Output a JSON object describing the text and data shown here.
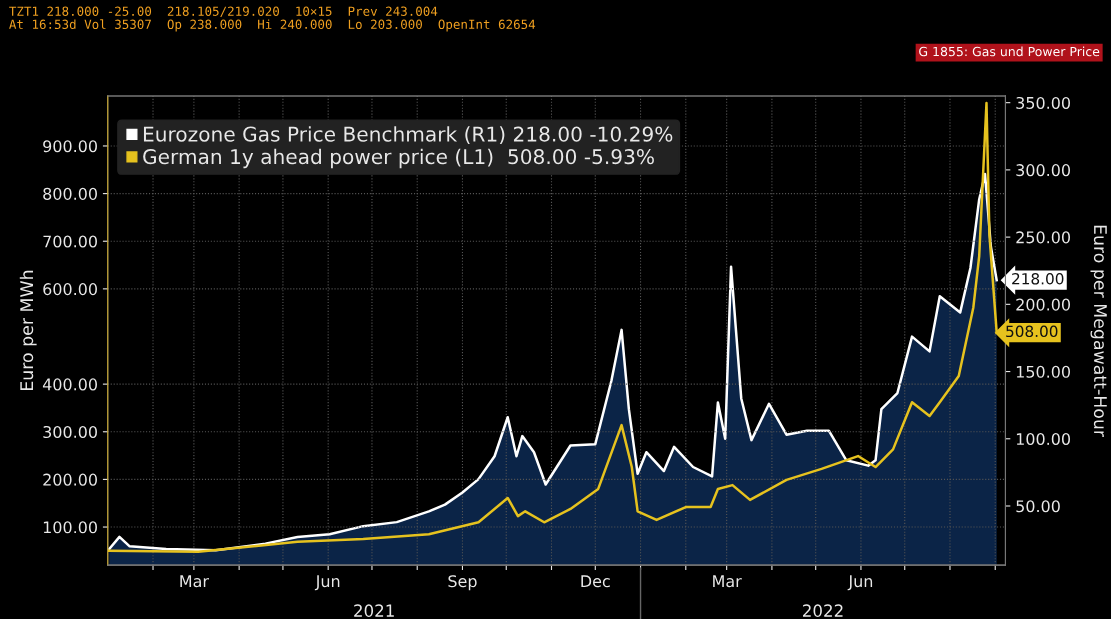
{
  "chart_data": {
    "type": "line",
    "title": "G 1855: Gas und Power Price",
    "subtitle": "TZT1 218.000 -25.00  218.105/219.020  10×15  Prev 243.004\nAt 16:53d Vol 35307  Op 238.000  Hi 240.000  Lo 203.000  OpenInt 62654",
    "ylabel": "Euro per MWh",
    "y2label": "Euro per Megawatt-Hour",
    "legend": "top left",
    "grid": true,
    "ylim": [
      20,
      1005
    ],
    "yticks": [
      {
        "value": 100,
        "label": "100.00"
      },
      {
        "value": 200,
        "label": "200.00"
      },
      {
        "value": 300,
        "label": "300.00"
      },
      {
        "value": 400,
        "label": "400.00"
      },
      {
        "value": 600,
        "label": "600.00"
      },
      {
        "value": 700,
        "label": "700.00"
      },
      {
        "value": 800,
        "label": "800.00"
      },
      {
        "value": 900,
        "label": "900.00"
      }
    ],
    "y2lim": [
      6,
      355
    ],
    "y2ticks": [
      {
        "value": 50,
        "label": "50.00"
      },
      {
        "value": 100,
        "label": "100.00"
      },
      {
        "value": 150,
        "label": "150.00"
      },
      {
        "value": 200,
        "label": "200.00"
      },
      {
        "value": 250,
        "label": "250.00"
      },
      {
        "value": 300,
        "label": "300.00"
      },
      {
        "value": 350,
        "label": "350.00"
      }
    ],
    "xlim": [
      "2021-01-01",
      "2022-09-08"
    ],
    "xticks": [
      {
        "value": "2021-02-01",
        "label": null
      },
      {
        "value": "2021-03-01",
        "label": "Mar"
      },
      {
        "value": "2021-04-01",
        "label": null
      },
      {
        "value": "2021-05-01",
        "label": null
      },
      {
        "value": "2021-06-01",
        "label": "Jun"
      },
      {
        "value": "2021-07-01",
        "label": null
      },
      {
        "value": "2021-08-01",
        "label": null
      },
      {
        "value": "2021-09-01",
        "label": "Sep"
      },
      {
        "value": "2021-10-01",
        "label": null
      },
      {
        "value": "2021-11-01",
        "label": null
      },
      {
        "value": "2021-12-01",
        "label": "Dec"
      },
      {
        "value": "2022-01-01",
        "label": null
      },
      {
        "value": "2022-02-01",
        "label": null
      },
      {
        "value": "2022-03-01",
        "label": "Mar"
      },
      {
        "value": "2022-04-01",
        "label": null
      },
      {
        "value": "2022-05-01",
        "label": null
      },
      {
        "value": "2022-06-01",
        "label": "Jun"
      },
      {
        "value": "2022-07-01",
        "label": null
      },
      {
        "value": "2022-08-01",
        "label": null
      },
      {
        "value": "2022-09-01",
        "label": null
      }
    ],
    "annotations": [
      "2021",
      "2022"
    ],
    "series": [
      {
        "name": "Eurozone Gas Price Benchmark (R1) 218.00 -10.29%",
        "type": "area",
        "axis": "y2",
        "color": "#ffffff",
        "x": [
          "2021-01-02",
          "2021-01-09",
          "2021-01-16",
          "2021-02-10",
          "2021-03-16",
          "2021-04-19",
          "2021-05-11",
          "2021-06-02",
          "2021-06-25",
          "2021-07-18",
          "2021-08-09",
          "2021-08-20",
          "2021-09-01",
          "2021-09-12",
          "2021-09-23",
          "2021-10-02",
          "2021-10-08",
          "2021-10-12",
          "2021-10-20",
          "2021-10-28",
          "2021-11-14",
          "2021-12-01",
          "2021-12-12",
          "2021-12-19",
          "2021-12-24",
          "2021-12-30",
          "2022-01-05",
          "2022-01-17",
          "2022-01-24",
          "2022-02-06",
          "2022-02-19",
          "2022-02-23",
          "2022-02-28",
          "2022-03-04",
          "2022-03-11",
          "2022-03-18",
          "2022-03-30",
          "2022-04-11",
          "2022-04-25",
          "2022-05-10",
          "2022-05-22",
          "2022-06-06",
          "2022-06-11",
          "2022-06-15",
          "2022-06-26",
          "2022-07-06",
          "2022-07-18",
          "2022-07-25",
          "2022-08-08",
          "2022-08-15",
          "2022-08-21",
          "2022-08-25",
          "2022-08-29",
          "2022-09-02"
        ],
        "values": [
          18,
          27,
          20,
          18,
          17,
          22,
          27,
          29,
          35,
          38,
          46,
          51,
          60,
          70,
          87,
          116,
          87,
          102,
          90,
          66,
          95,
          96,
          143,
          181,
          122,
          74,
          90,
          76,
          94,
          79,
          72,
          127,
          100,
          228,
          130,
          99,
          126,
          103,
          106,
          106,
          84,
          80,
          84,
          122,
          134,
          176,
          165,
          206,
          194,
          227,
          278,
          297,
          243,
          218
        ],
        "value_labels": [
          null,
          null,
          null,
          null,
          null,
          null,
          null,
          null,
          null,
          null,
          null,
          null,
          null,
          null,
          null,
          null,
          null,
          null,
          null,
          null,
          null,
          null,
          null,
          null,
          null,
          null,
          null,
          null,
          null,
          null,
          null,
          null,
          null,
          null,
          null,
          null,
          null,
          null,
          null,
          null,
          null,
          null,
          null,
          null,
          null,
          null,
          null,
          null,
          null,
          null,
          null,
          null,
          null,
          "218.00"
        ]
      },
      {
        "name": "German 1y ahead power price (L1)  508.00 -5.93%",
        "axis": "y",
        "color": "#e6c21e",
        "x": [
          "2021-01-02",
          "2021-03-04",
          "2021-05-11",
          "2021-06-25",
          "2021-08-09",
          "2021-09-12",
          "2021-10-02",
          "2021-10-09",
          "2021-10-14",
          "2021-10-27",
          "2021-11-14",
          "2021-12-03",
          "2021-12-19",
          "2021-12-26",
          "2021-12-30",
          "2022-01-12",
          "2022-02-01",
          "2022-02-18",
          "2022-02-23",
          "2022-03-05",
          "2022-03-17",
          "2022-04-11",
          "2022-05-05",
          "2022-05-30",
          "2022-06-11",
          "2022-06-23",
          "2022-07-06",
          "2022-07-18",
          "2022-07-25",
          "2022-08-07",
          "2022-08-17",
          "2022-08-21",
          "2022-08-26",
          "2022-08-28",
          "2022-09-02"
        ],
        "values": [
          50,
          48,
          69,
          75,
          85,
          110,
          161,
          123,
          133,
          110,
          138,
          180,
          314,
          226,
          133,
          115,
          142,
          142,
          180,
          188,
          157,
          199,
          222,
          249,
          226,
          263,
          362,
          333,
          362,
          417,
          561,
          668,
          990,
          714,
          508
        ],
        "value_labels": [
          null,
          null,
          null,
          null,
          null,
          null,
          null,
          null,
          null,
          null,
          null,
          null,
          null,
          null,
          null,
          null,
          null,
          null,
          null,
          null,
          null,
          null,
          null,
          null,
          null,
          null,
          null,
          null,
          null,
          null,
          null,
          null,
          null,
          null,
          "508.00"
        ]
      }
    ]
  }
}
